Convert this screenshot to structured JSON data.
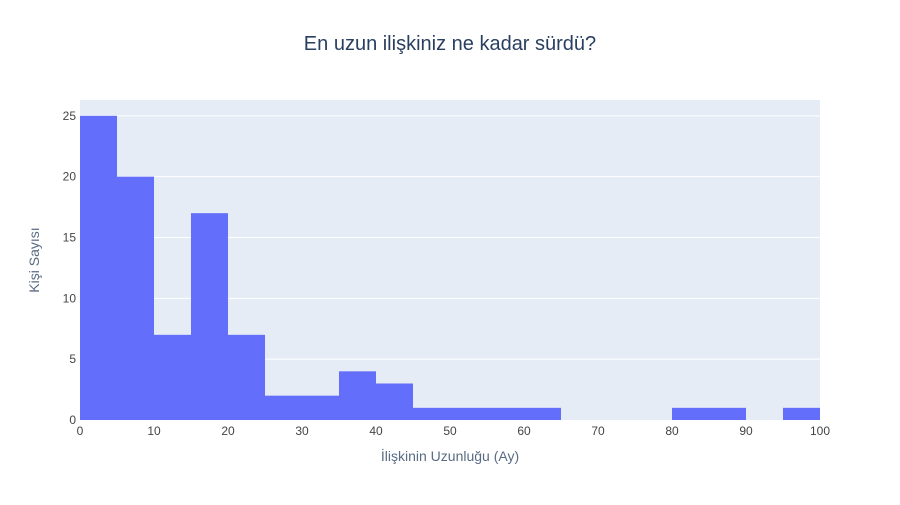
{
  "chart_data": {
    "type": "bar",
    "title": "En uzun ilişkiniz ne kadar sürdü?",
    "xlabel": "İlişkinin Uzunluğu (Ay)",
    "ylabel": "Kişi Sayısı",
    "bin_width": 5,
    "bins": [
      {
        "start": 0,
        "end": 5,
        "count": 25
      },
      {
        "start": 5,
        "end": 10,
        "count": 20
      },
      {
        "start": 10,
        "end": 15,
        "count": 7
      },
      {
        "start": 15,
        "end": 20,
        "count": 17
      },
      {
        "start": 20,
        "end": 25,
        "count": 7
      },
      {
        "start": 25,
        "end": 30,
        "count": 2
      },
      {
        "start": 30,
        "end": 35,
        "count": 2
      },
      {
        "start": 35,
        "end": 40,
        "count": 4
      },
      {
        "start": 40,
        "end": 45,
        "count": 3
      },
      {
        "start": 45,
        "end": 50,
        "count": 1
      },
      {
        "start": 50,
        "end": 55,
        "count": 1
      },
      {
        "start": 55,
        "end": 60,
        "count": 1
      },
      {
        "start": 60,
        "end": 65,
        "count": 1
      },
      {
        "start": 65,
        "end": 70,
        "count": 0
      },
      {
        "start": 70,
        "end": 75,
        "count": 0
      },
      {
        "start": 75,
        "end": 80,
        "count": 0
      },
      {
        "start": 80,
        "end": 85,
        "count": 1
      },
      {
        "start": 85,
        "end": 90,
        "count": 1
      },
      {
        "start": 90,
        "end": 95,
        "count": 0
      },
      {
        "start": 95,
        "end": 100,
        "count": 1
      }
    ],
    "xlim": [
      0,
      100
    ],
    "ylim": [
      0,
      26.3
    ],
    "xticks": [
      0,
      10,
      20,
      30,
      40,
      50,
      60,
      70,
      80,
      90,
      100
    ],
    "yticks": [
      0,
      5,
      10,
      15,
      20,
      25
    ],
    "grid": true,
    "colors": {
      "bar": "#636efa",
      "plot_bg": "#e5ecf6",
      "grid": "#ffffff",
      "text": "#2a3f5f",
      "tick_text": "#444444"
    }
  }
}
